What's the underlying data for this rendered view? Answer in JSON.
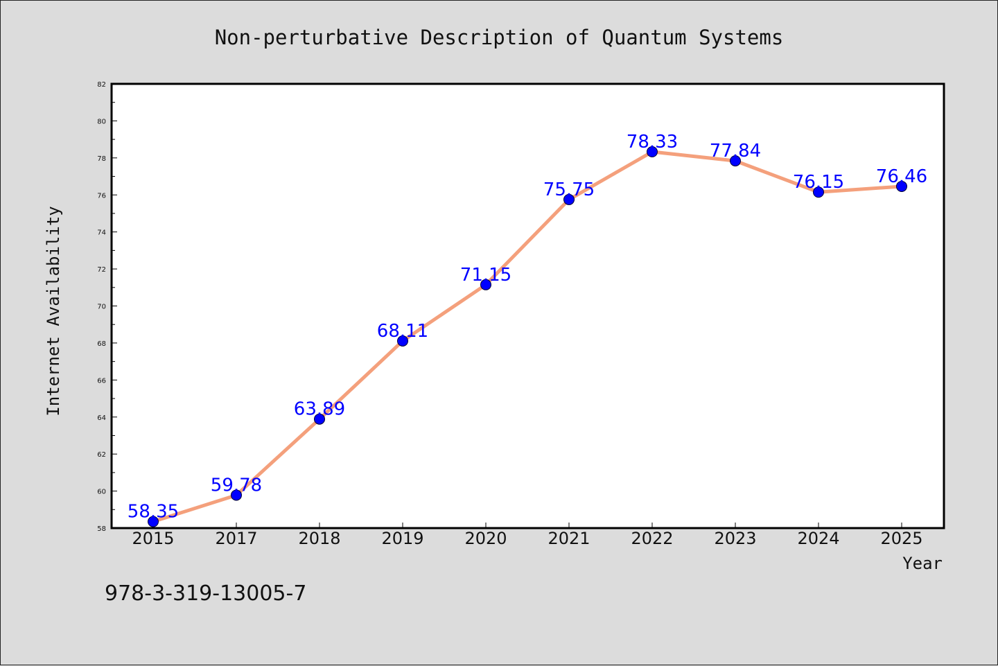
{
  "chart_data": {
    "type": "line",
    "title": "Non-perturbative Description of Quantum Systems",
    "xlabel": "Year",
    "ylabel": "Internet Availability",
    "categories": [
      "2015",
      "2017",
      "2018",
      "2019",
      "2020",
      "2021",
      "2022",
      "2023",
      "2024",
      "2025"
    ],
    "series": [
      {
        "values": [
          58.35,
          59.78,
          63.89,
          68.11,
          71.15,
          75.75,
          78.33,
          77.84,
          76.15,
          76.46
        ],
        "data_labels": [
          "58.35",
          "59.78",
          "63.89",
          "68.11",
          "71.15",
          "75.75",
          "78.33",
          "77.84",
          "76.15",
          "76.46"
        ]
      }
    ],
    "ylim": [
      58,
      82
    ],
    "yticks": [
      "58",
      "60",
      "62",
      "64",
      "66",
      "68",
      "70",
      "72",
      "74",
      "76",
      "78",
      "80",
      "82"
    ],
    "grid": false,
    "legend": "none",
    "colors": {
      "line": "#f4a07c",
      "marker": "#0000ff",
      "data_label": "#0000ff",
      "background": "#dcdcdc",
      "plot_background": "#ffffff"
    }
  },
  "footer": {
    "isbn": "978-3-319-13005-7"
  }
}
